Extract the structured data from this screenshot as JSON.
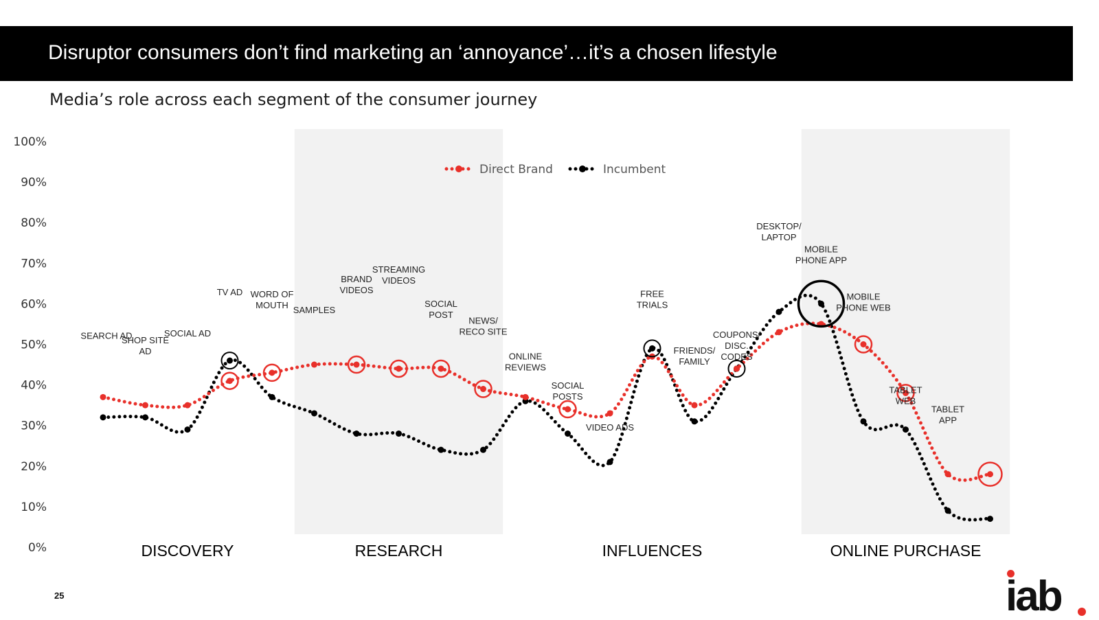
{
  "title": "Disruptor consumers don’t find marketing an ‘annoyance’…it’s a chosen lifestyle",
  "subtitle": "Media’s role across each segment of the consumer journey",
  "page_number": "25",
  "logo_text": "iab.",
  "colors": {
    "direct_brand": "#e8302a",
    "incumbent": "#000000",
    "band": "#f2f2f2"
  },
  "chart_data": {
    "type": "line",
    "ylim": [
      0,
      100
    ],
    "yticks": [
      "0%",
      "10%",
      "20%",
      "30%",
      "40%",
      "50%",
      "60%",
      "70%",
      "80%",
      "90%",
      "100%"
    ],
    "legend": [
      "Direct Brand",
      "Incumbent"
    ],
    "legend_position": "top-center",
    "segments": [
      {
        "name": "DISCOVERY",
        "shaded": false,
        "from": 0,
        "to": 5
      },
      {
        "name": "RESEARCH",
        "shaded": true,
        "from": 5,
        "to": 10
      },
      {
        "name": "INFLUENCES",
        "shaded": false,
        "from": 10,
        "to": 17
      },
      {
        "name": "ONLINE PURCHASE",
        "shaded": true,
        "from": 17,
        "to": 22
      }
    ],
    "categories": [
      {
        "label": "SEARCH AD",
        "direct_brand": 37,
        "incumbent": 32
      },
      {
        "label": "SHOP SITE AD",
        "direct_brand": 35,
        "incumbent": 32
      },
      {
        "label": "SOCIAL AD",
        "direct_brand": 35,
        "incumbent": 29
      },
      {
        "label": "TV AD",
        "direct_brand": 41,
        "incumbent": 46
      },
      {
        "label": "WORD OF MOUTH",
        "direct_brand": 43,
        "incumbent": 37
      },
      {
        "label": "SAMPLES",
        "direct_brand": 45,
        "incumbent": 33
      },
      {
        "label": "BRAND VIDEOS",
        "direct_brand": 45,
        "incumbent": 28
      },
      {
        "label": "STREAMING VIDEOS",
        "direct_brand": 44,
        "incumbent": 28
      },
      {
        "label": "SOCIAL POST",
        "direct_brand": 44,
        "incumbent": 24
      },
      {
        "label": "NEWS/ RECO SITE",
        "direct_brand": 39,
        "incumbent": 24
      },
      {
        "label": "ONLINE REVIEWS",
        "direct_brand": 37,
        "incumbent": 36
      },
      {
        "label": "SOCIAL POSTS",
        "direct_brand": 34,
        "incumbent": 28
      },
      {
        "label": "VIDEO ADS",
        "direct_brand": 33,
        "incumbent": 21
      },
      {
        "label": "FREE TRIALS",
        "direct_brand": 47,
        "incumbent": 49
      },
      {
        "label": "FRIENDS/ FAMILY",
        "direct_brand": 35,
        "incumbent": 31
      },
      {
        "label": "COUPONS/ DISC. CODES",
        "direct_brand": 44,
        "incumbent": 44
      },
      {
        "label": "DESKTOP/ LAPTOP",
        "direct_brand": 53,
        "incumbent": 58
      },
      {
        "label": "MOBILE PHONE APP",
        "direct_brand": 55,
        "incumbent": 60
      },
      {
        "label": "MOBILE PHONE WEB",
        "direct_brand": 50,
        "incumbent": 31
      },
      {
        "label": "TABLET WEB",
        "direct_brand": 38,
        "incumbent": 29
      },
      {
        "label": "TABLET APP",
        "direct_brand": 18,
        "incumbent": 9
      },
      {
        "label": "",
        "direct_brand": 18,
        "incumbent": 7
      }
    ]
  }
}
